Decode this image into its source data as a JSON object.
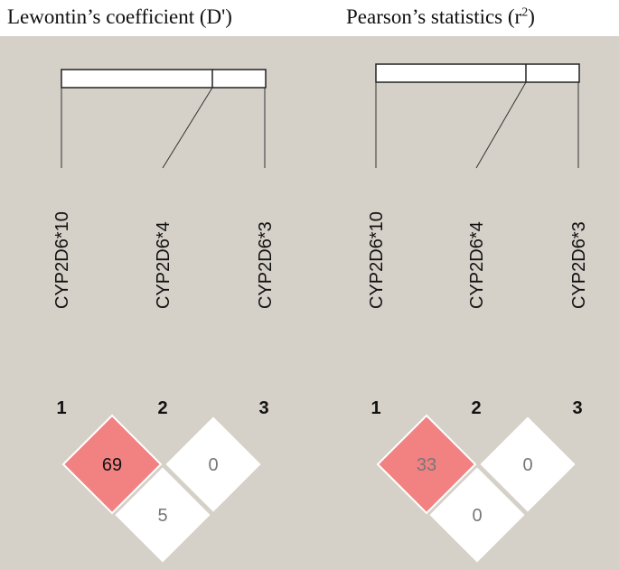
{
  "colors": {
    "background": "#d5d0c8",
    "high_ld": "#f28282",
    "low_ld": "#ffffff",
    "line": "#222222"
  },
  "panels": [
    {
      "title_text": "Lewontin’s coefficient (D')",
      "markers": [
        "CYP2D6*10",
        "CYP2D6*4",
        "CYP2D6*3"
      ],
      "indices": [
        "1",
        "2",
        "3"
      ],
      "cells": [
        {
          "pair": "1-2",
          "value": "69",
          "fill": "high_ld",
          "text_color": "#111111"
        },
        {
          "pair": "2-3",
          "value": "0",
          "fill": "low_ld",
          "text_color": "#777777"
        },
        {
          "pair": "1-3",
          "value": "5",
          "fill": "low_ld",
          "text_color": "#777777"
        }
      ]
    },
    {
      "title_text": "Pearson’s statistics (r",
      "title_sup": "2",
      "title_close": ")",
      "markers": [
        "CYP2D6*10",
        "CYP2D6*4",
        "CYP2D6*3"
      ],
      "indices": [
        "1",
        "2",
        "3"
      ],
      "cells": [
        {
          "pair": "1-2",
          "value": "33",
          "fill": "high_ld",
          "text_color": "#777777"
        },
        {
          "pair": "2-3",
          "value": "0",
          "fill": "low_ld",
          "text_color": "#777777"
        },
        {
          "pair": "1-3",
          "value": "0",
          "fill": "low_ld",
          "text_color": "#777777"
        }
      ]
    }
  ]
}
